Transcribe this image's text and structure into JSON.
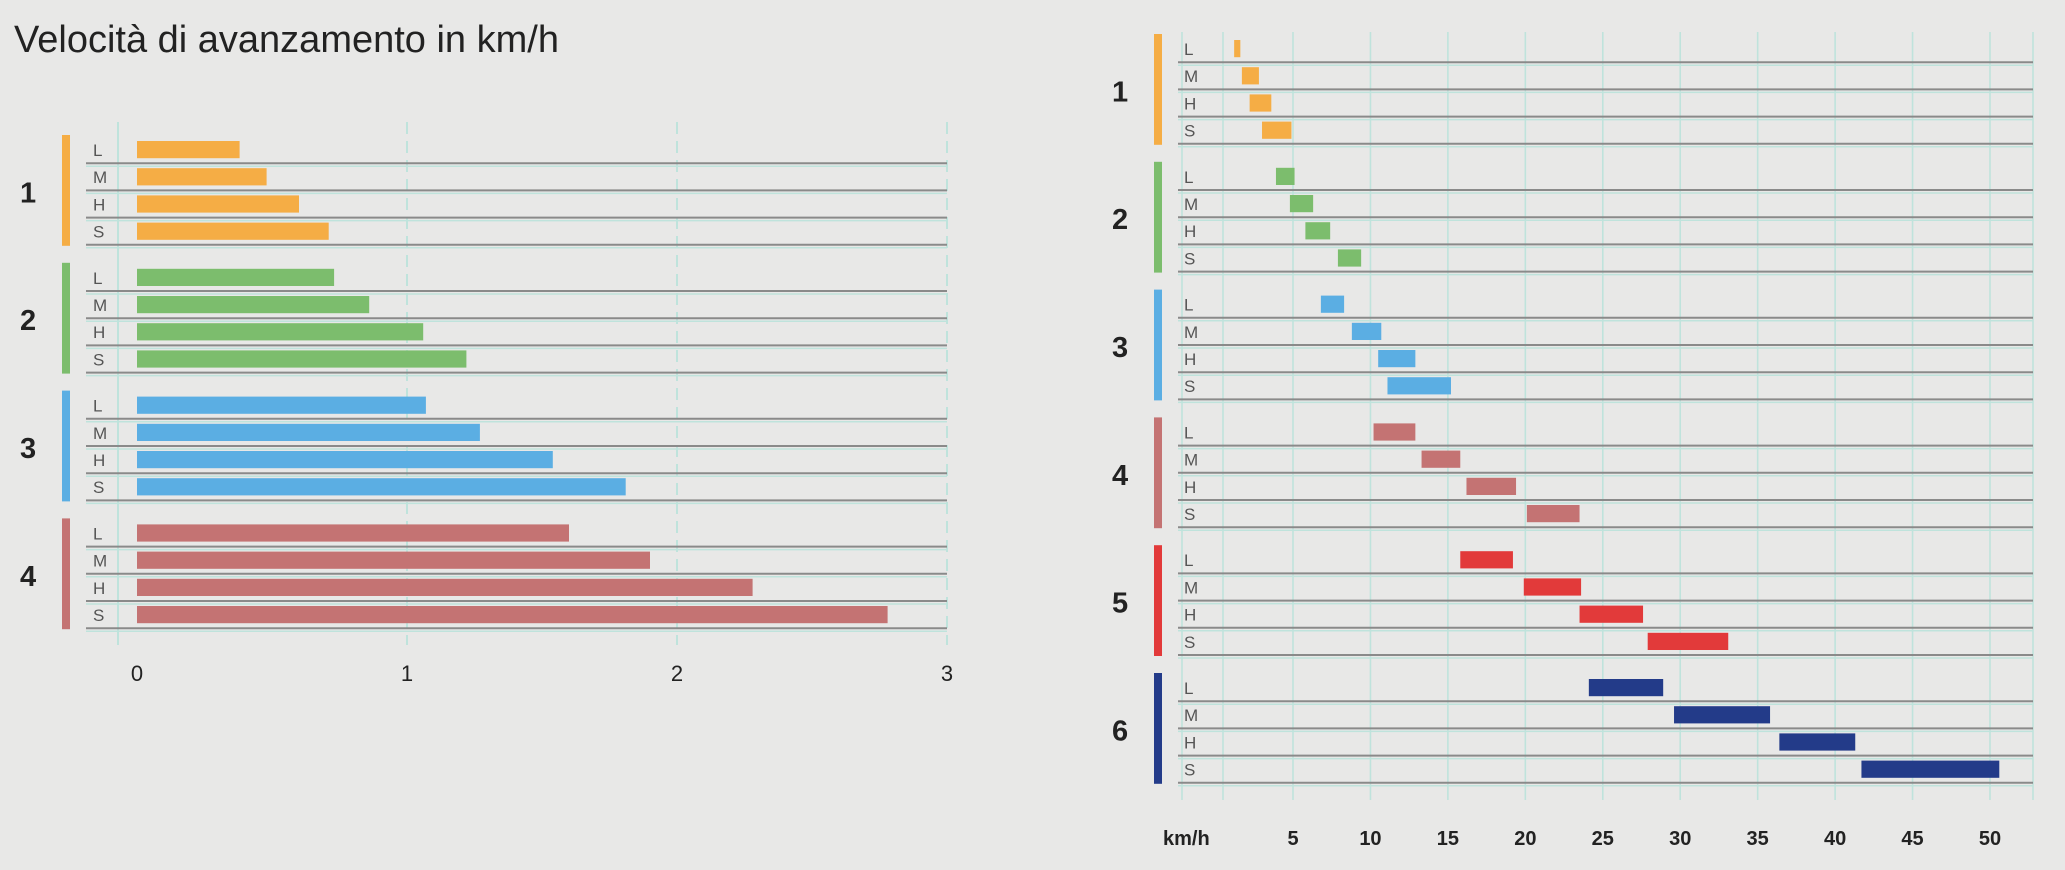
{
  "title": "Velocità di avanzamento in km/h",
  "colors": {
    "1": "#f5ad45",
    "2": "#7cbd6d",
    "3": "#5baee3",
    "4": "#c47373",
    "5": "#e23a3a",
    "6": "#233b89",
    "grid": "#bfe3dc",
    "row_line": "#8a8a8a"
  },
  "modes": [
    "L",
    "M",
    "H",
    "S"
  ],
  "chart_data": [
    {
      "type": "bar",
      "orientation": "horizontal",
      "title": "Velocità di avanzamento in km/h",
      "xlabel": "",
      "xlim": [
        0,
        3
      ],
      "ticks": [
        0,
        1,
        2,
        3
      ],
      "categories": [
        "1",
        "2",
        "3",
        "4"
      ],
      "series": [
        {
          "name": "L",
          "values": [
            0.38,
            0.73,
            1.07,
            1.6
          ]
        },
        {
          "name": "M",
          "values": [
            0.48,
            0.86,
            1.27,
            1.9
          ]
        },
        {
          "name": "H",
          "values": [
            0.6,
            1.06,
            1.54,
            2.28
          ]
        },
        {
          "name": "S",
          "values": [
            0.71,
            1.22,
            1.81,
            2.78
          ]
        }
      ]
    },
    {
      "type": "bar",
      "orientation": "horizontal",
      "subtype": "range",
      "title": "",
      "xlabel": "km/h",
      "xlim": [
        0,
        50
      ],
      "ticks": [
        5,
        10,
        15,
        20,
        25,
        30,
        35,
        40,
        45,
        50
      ],
      "categories": [
        "1",
        "2",
        "3",
        "4",
        "5",
        "6"
      ],
      "series": [
        {
          "name": "L",
          "ranges": [
            [
              1.2,
              1.6
            ],
            [
              3.9,
              5.1
            ],
            [
              6.8,
              8.3
            ],
            [
              10.2,
              12.9
            ],
            [
              15.8,
              19.2
            ],
            [
              24.1,
              28.9
            ]
          ]
        },
        {
          "name": "M",
          "ranges": [
            [
              1.7,
              2.8
            ],
            [
              4.8,
              6.3
            ],
            [
              8.8,
              10.7
            ],
            [
              13.3,
              15.8
            ],
            [
              19.9,
              23.6
            ],
            [
              29.6,
              35.8
            ]
          ]
        },
        {
          "name": "H",
          "ranges": [
            [
              2.2,
              3.6
            ],
            [
              5.8,
              7.4
            ],
            [
              10.5,
              12.9
            ],
            [
              16.2,
              19.4
            ],
            [
              23.5,
              27.6
            ],
            [
              36.4,
              41.3
            ]
          ]
        },
        {
          "name": "S",
          "ranges": [
            [
              3,
              4.9
            ],
            [
              7.9,
              9.4
            ],
            [
              11.1,
              15.2
            ],
            [
              20.1,
              23.5
            ],
            [
              27.9,
              33.1
            ],
            [
              41.7,
              50.6
            ]
          ]
        }
      ]
    }
  ]
}
